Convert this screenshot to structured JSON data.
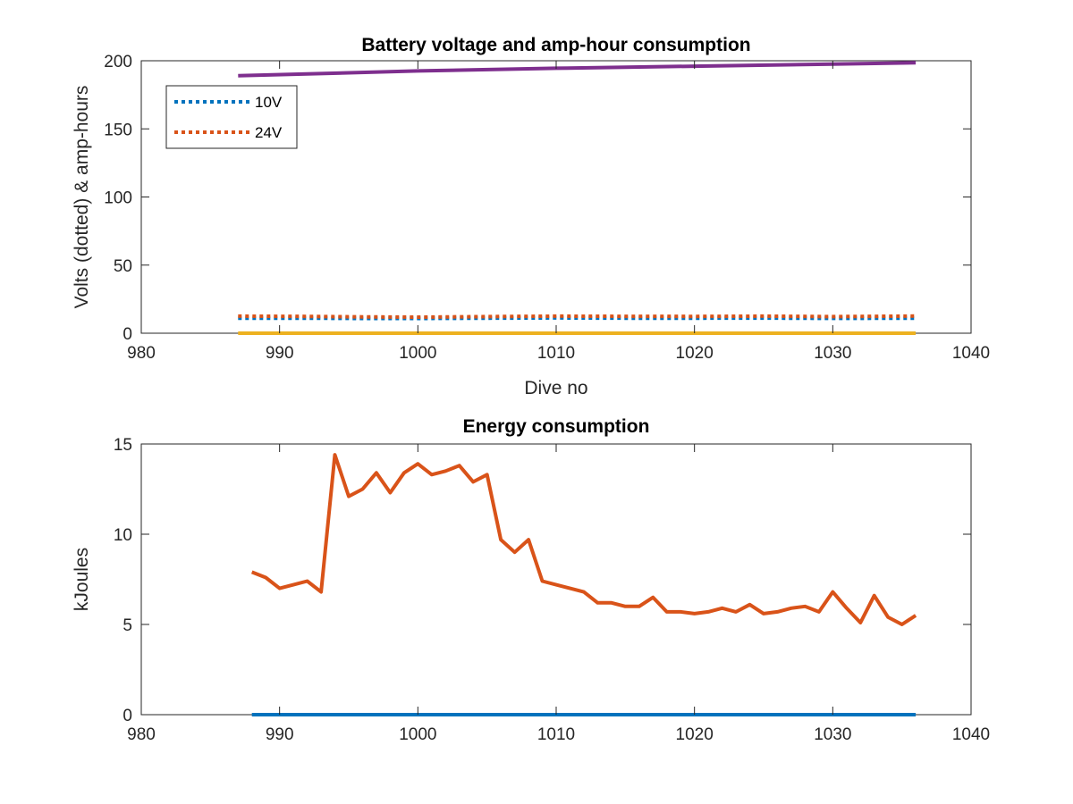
{
  "chart_data": [
    {
      "type": "line",
      "title": "Battery voltage and amp-hour consumption",
      "xlabel": "Dive no",
      "ylabel": "Volts (dotted) & amp-hours",
      "xlim": [
        980,
        1040
      ],
      "ylim": [
        0,
        200
      ],
      "xticks": [
        980,
        990,
        1000,
        1010,
        1020,
        1030,
        1040
      ],
      "yticks": [
        0,
        50,
        100,
        150,
        200
      ],
      "legend_position": "top-left",
      "grid": false,
      "series": [
        {
          "name": "10V",
          "style": "dotted",
          "color": "#0072BD",
          "in_legend": true,
          "x": [
            987,
            992,
            996,
            1000,
            1005,
            1010,
            1015,
            1020,
            1025,
            1030,
            1036
          ],
          "values": [
            11,
            11,
            10.8,
            10.8,
            11,
            11.2,
            11,
            11,
            11.1,
            10.9,
            11
          ]
        },
        {
          "name": "24V",
          "style": "dotted",
          "color": "#D95319",
          "in_legend": true,
          "x": [
            987,
            992,
            996,
            1000,
            1005,
            1010,
            1015,
            1020,
            1025,
            1030,
            1036
          ],
          "values": [
            12.5,
            12.3,
            12,
            11.8,
            12.2,
            12.5,
            12.4,
            12.3,
            12.5,
            12.2,
            12.6
          ]
        },
        {
          "style": "solid",
          "color": "#EDB120",
          "in_legend": false,
          "x": [
            987,
            1036
          ],
          "values": [
            0,
            0
          ]
        },
        {
          "style": "solid",
          "color": "#7E2F8E",
          "in_legend": false,
          "x": [
            987,
            1000,
            1010,
            1020,
            1030,
            1036
          ],
          "values": [
            189,
            192.5,
            194.5,
            196,
            197.5,
            198.5
          ]
        }
      ]
    },
    {
      "type": "line",
      "title": "Energy consumption",
      "xlabel": "",
      "ylabel": "kJoules",
      "xlim": [
        980,
        1040
      ],
      "ylim": [
        0,
        15
      ],
      "xticks": [
        980,
        990,
        1000,
        1010,
        1020,
        1030,
        1040
      ],
      "yticks": [
        0,
        5,
        10,
        15
      ],
      "grid": false,
      "series": [
        {
          "style": "solid",
          "color": "#0072BD",
          "x": [
            988,
            1036
          ],
          "values": [
            0,
            0
          ]
        },
        {
          "style": "solid",
          "color": "#D95319",
          "x": [
            988,
            989,
            990,
            991,
            992,
            993,
            994,
            995,
            996,
            997,
            998,
            999,
            1000,
            1001,
            1002,
            1003,
            1004,
            1005,
            1006,
            1007,
            1008,
            1009,
            1010,
            1011,
            1012,
            1013,
            1014,
            1015,
            1016,
            1017,
            1018,
            1019,
            1020,
            1021,
            1022,
            1023,
            1024,
            1025,
            1026,
            1027,
            1028,
            1029,
            1030,
            1031,
            1032,
            1033,
            1034,
            1035,
            1036
          ],
          "values": [
            7.9,
            7.6,
            7.0,
            7.2,
            7.4,
            6.8,
            14.4,
            12.1,
            12.5,
            13.4,
            12.3,
            13.4,
            13.9,
            13.3,
            13.5,
            13.8,
            12.9,
            13.3,
            9.7,
            9.0,
            9.7,
            7.4,
            7.2,
            7.0,
            6.8,
            6.2,
            6.2,
            6.0,
            6.0,
            6.5,
            5.7,
            5.7,
            5.6,
            5.7,
            5.9,
            5.7,
            6.1,
            5.6,
            5.7,
            5.9,
            6.0,
            5.7,
            6.8,
            5.9,
            5.1,
            6.6,
            5.4,
            5.0,
            5.5
          ]
        }
      ]
    }
  ]
}
